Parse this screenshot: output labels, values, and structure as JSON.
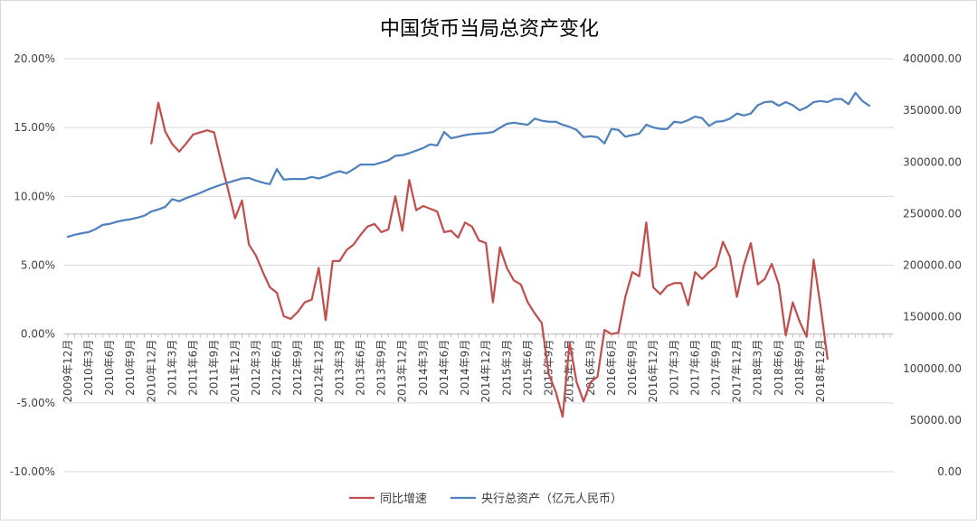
{
  "chart_data": {
    "type": "line",
    "title": "中国货币当局总资产变化",
    "xlabel": "",
    "ylabel_left": "",
    "ylabel_right": "",
    "grid": true,
    "legend_position": "bottom",
    "y_left": {
      "range": [
        -0.1,
        0.2
      ],
      "ticks": [
        "-10.00%",
        "-5.00%",
        "0.00%",
        "5.00%",
        "10.00%",
        "15.00%",
        "20.00%"
      ]
    },
    "y_right": {
      "range": [
        0,
        400000
      ],
      "ticks": [
        "0.00",
        "50000.00",
        "100000.00",
        "150000.00",
        "200000.00",
        "250000.00",
        "300000.00",
        "350000.00",
        "400000.00"
      ]
    },
    "x_tick_labels": [
      "2009年12月",
      "2010年3月",
      "2010年6月",
      "2010年9月",
      "2010年12月",
      "2011年3月",
      "2011年6月",
      "2011年9月",
      "2011年12月",
      "2012年3月",
      "2012年6月",
      "2012年9月",
      "2012年12月",
      "2013年3月",
      "2013年6月",
      "2013年9月",
      "2013年12月",
      "2014年3月",
      "2014年6月",
      "2014年9月",
      "2014年12月",
      "2015年3月",
      "2015年6月",
      "2015年9月",
      "2015年12月",
      "2016年3月",
      "2016年6月",
      "2016年9月",
      "2016年12月",
      "2017年3月",
      "2017年6月",
      "2017年9月",
      "2017年12月",
      "2018年3月",
      "2018年6月",
      "2018年9月",
      "2018年12月"
    ],
    "series": [
      {
        "name": "同比增速",
        "axis": "left",
        "color": "#c0504d",
        "start_index": 12,
        "values": [
          0.1385,
          0.168,
          0.147,
          0.138,
          0.1325,
          0.1385,
          0.145,
          0.1465,
          0.148,
          0.1465,
          0.125,
          0.105,
          0.084,
          0.097,
          0.065,
          0.057,
          0.045,
          0.034,
          0.03,
          0.013,
          0.011,
          0.016,
          0.023,
          0.025,
          0.048,
          0.01,
          0.053,
          0.053,
          0.061,
          0.065,
          0.072,
          0.078,
          0.08,
          0.074,
          0.076,
          0.1,
          0.075,
          0.112,
          0.09,
          0.093,
          0.091,
          0.089,
          0.074,
          0.075,
          0.07,
          0.081,
          0.078,
          0.068,
          0.066,
          0.023,
          0.063,
          0.048,
          0.039,
          0.036,
          0.023,
          0.015,
          0.008,
          -0.029,
          -0.042,
          -0.06,
          -0.006,
          -0.035,
          -0.049,
          -0.035,
          -0.031,
          0.003,
          0.0,
          0.001,
          0.027,
          0.045,
          0.042,
          0.081,
          0.034,
          0.029,
          0.035,
          0.037,
          0.037,
          0.021,
          0.045,
          0.04,
          0.045,
          0.049,
          0.067,
          0.056,
          0.027,
          0.05,
          0.066,
          0.036,
          0.04,
          0.051,
          0.036,
          -0.001,
          0.023,
          0.009,
          -0.002,
          0.054,
          0.02,
          -0.018
        ]
      },
      {
        "name": "央行总资产（亿元人民币）",
        "axis": "right",
        "color": "#4f81bd",
        "start_index": 0,
        "values": [
          227500,
          229500,
          231000,
          232000,
          235000,
          239000,
          240000,
          242000,
          243500,
          244500,
          246000,
          248000,
          252000,
          254000,
          256500,
          264000,
          262000,
          265000,
          267500,
          270000,
          273000,
          275500,
          278000,
          280000,
          282000,
          284000,
          284500,
          282000,
          280000,
          278500,
          293000,
          283000,
          283500,
          283500,
          283500,
          285500,
          284000,
          286000,
          289000,
          291000,
          289000,
          293000,
          297500,
          297500,
          297500,
          299500,
          301500,
          306000,
          306500,
          308500,
          311000,
          313500,
          317000,
          316000,
          329000,
          323000,
          324500,
          326000,
          327000,
          327500,
          328000,
          329000,
          333000,
          337000,
          338000,
          337000,
          336000,
          342000,
          340000,
          339000,
          339000,
          336000,
          334000,
          331000,
          324000,
          325000,
          324000,
          318000,
          332000,
          331000,
          324500,
          326000,
          327500,
          336000,
          333500,
          332000,
          332000,
          339000,
          338000,
          340500,
          344000,
          342500,
          335000,
          339000,
          339500,
          342000,
          347000,
          345000,
          347000,
          355000,
          358000,
          358500,
          354500,
          358000,
          355000,
          350000,
          353000,
          358000,
          359000,
          358000,
          361000,
          361000,
          356000,
          367000,
          359000,
          354500
        ]
      }
    ]
  }
}
